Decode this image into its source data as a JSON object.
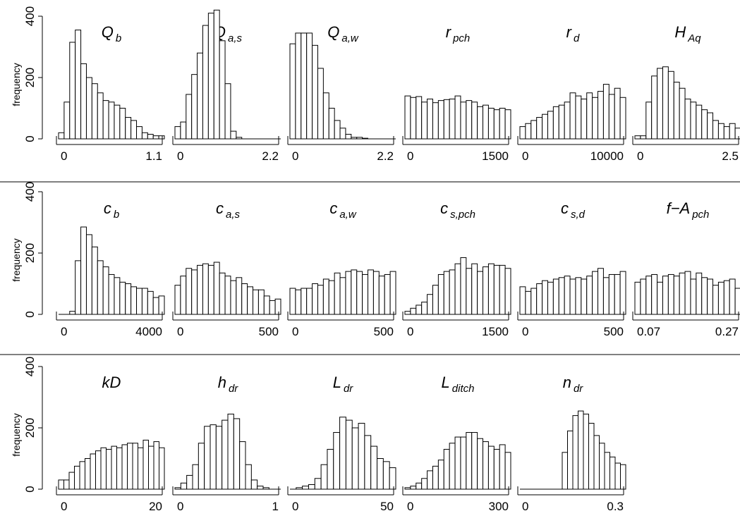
{
  "chart_data": {
    "type": "bar",
    "subtype": "histogram-grid",
    "y_label": "frequency",
    "y_ticks": [
      "0",
      "200",
      "400"
    ],
    "ylim": [
      0,
      400
    ],
    "rows": [
      {
        "panels": [
          {
            "name": "Qb",
            "title_main": "Q",
            "title_sub": "b",
            "x_ticks": [
              "0",
              "1.1"
            ],
            "values": [
              20,
              120,
              315,
              355,
              245,
              200,
              180,
              150,
              125,
              120,
              110,
              100,
              70,
              60,
              40,
              20,
              15,
              10,
              10
            ]
          },
          {
            "name": "Qa,s",
            "title_main": "Q",
            "title_sub": "a,s",
            "x_ticks": [
              "0",
              "2.2"
            ],
            "values": [
              40,
              55,
              145,
              210,
              280,
              370,
              410,
              420,
              320,
              180,
              25,
              5,
              0,
              0,
              0,
              0,
              0,
              0,
              0
            ]
          },
          {
            "name": "Qa,w",
            "title_main": "Q",
            "title_sub": "a,w",
            "x_ticks": [
              "0",
              "2.2"
            ],
            "values": [
              310,
              345,
              345,
              345,
              305,
              230,
              150,
              100,
              60,
              35,
              15,
              5,
              5,
              2,
              0,
              0,
              0,
              0,
              0
            ]
          },
          {
            "name": "rpch",
            "title_main": "r",
            "title_sub": "pch",
            "x_ticks": [
              "0",
              "1500"
            ],
            "values": [
              140,
              135,
              138,
              120,
              130,
              118,
              125,
              128,
              130,
              140,
              120,
              125,
              120,
              105,
              110,
              100,
              95,
              100,
              95
            ]
          },
          {
            "name": "rd",
            "title_main": "r",
            "title_sub": "d",
            "x_ticks": [
              "0",
              "10000"
            ],
            "values": [
              40,
              50,
              60,
              70,
              80,
              90,
              105,
              110,
              120,
              150,
              140,
              130,
              150,
              135,
              155,
              178,
              145,
              165,
              135
            ]
          },
          {
            "name": "HAq",
            "title_main": "H",
            "title_sub": "Aq",
            "x_ticks": [
              "0",
              "2.5"
            ],
            "values": [
              10,
              10,
              120,
              205,
              230,
              235,
              220,
              185,
              165,
              130,
              120,
              110,
              95,
              85,
              60,
              50,
              40,
              50,
              35
            ]
          }
        ]
      },
      {
        "panels": [
          {
            "name": "cb",
            "title_main": "c",
            "title_sub": "b",
            "x_ticks": [
              "0",
              "4000"
            ],
            "values": [
              0,
              0,
              10,
              175,
              285,
              260,
              220,
              175,
              155,
              130,
              120,
              105,
              100,
              90,
              85,
              85,
              75,
              55,
              60
            ]
          },
          {
            "name": "ca,s",
            "title_main": "c",
            "title_sub": "a,s",
            "x_ticks": [
              "0",
              "500"
            ],
            "values": [
              95,
              125,
              150,
              145,
              160,
              165,
              160,
              170,
              135,
              125,
              110,
              120,
              100,
              90,
              80,
              80,
              60,
              45,
              50
            ]
          },
          {
            "name": "ca,w",
            "title_main": "c",
            "title_sub": "a,w",
            "x_ticks": [
              "0",
              "500"
            ],
            "values": [
              85,
              80,
              85,
              85,
              100,
              95,
              115,
              110,
              135,
              120,
              140,
              145,
              140,
              130,
              145,
              140,
              125,
              130,
              140
            ]
          },
          {
            "name": "cs,pch",
            "title_main": "c",
            "title_sub": "s,pch",
            "x_ticks": [
              "0",
              "1500"
            ],
            "values": [
              10,
              20,
              30,
              40,
              65,
              95,
              130,
              140,
              145,
              165,
              185,
              150,
              165,
              140,
              155,
              165,
              160,
              160,
              150
            ]
          },
          {
            "name": "cs,d",
            "title_main": "c",
            "title_sub": "s,d",
            "x_ticks": [
              "0",
              "500"
            ],
            "values": [
              90,
              75,
              85,
              100,
              110,
              105,
              115,
              120,
              125,
              115,
              120,
              115,
              125,
              140,
              150,
              120,
              130,
              130,
              140
            ]
          },
          {
            "name": "f-Apch",
            "title_main": "f−A",
            "title_sub": "pch",
            "x_ticks": [
              "0.07",
              "0.27"
            ],
            "values": [
              105,
              115,
              125,
              130,
              105,
              125,
              130,
              125,
              135,
              140,
              115,
              135,
              120,
              115,
              95,
              105,
              110,
              115,
              85
            ]
          }
        ]
      },
      {
        "panels": [
          {
            "name": "kD",
            "title_main": "kD",
            "title_sub": "",
            "x_ticks": [
              "0",
              "20"
            ],
            "values": [
              30,
              30,
              55,
              75,
              90,
              100,
              115,
              125,
              135,
              130,
              140,
              135,
              145,
              150,
              150,
              135,
              160,
              140,
              155,
              135
            ]
          },
          {
            "name": "hdr",
            "title_main": "h",
            "title_sub": "dr",
            "x_ticks": [
              "0",
              "1"
            ],
            "values": [
              5,
              20,
              45,
              80,
              150,
              205,
              210,
              205,
              225,
              245,
              230,
              155,
              80,
              30,
              10,
              5,
              0,
              0
            ]
          },
          {
            "name": "Ldr",
            "title_main": "L",
            "title_sub": "dr",
            "x_ticks": [
              "0",
              "50"
            ],
            "values": [
              0,
              5,
              10,
              15,
              35,
              80,
              130,
              185,
              235,
              225,
              200,
              215,
              175,
              140,
              100,
              90,
              70
            ]
          },
          {
            "name": "Lditch",
            "title_main": "L",
            "title_sub": "ditch",
            "x_ticks": [
              "0",
              "300"
            ],
            "values": [
              5,
              10,
              20,
              35,
              60,
              75,
              95,
              130,
              150,
              170,
              170,
              185,
              185,
              165,
              155,
              140,
              130,
              145,
              120
            ]
          },
          {
            "name": "ndr",
            "title_main": "n",
            "title_sub": "dr",
            "x_ticks": [
              "0",
              "0.3"
            ],
            "values": [
              0,
              0,
              0,
              0,
              0,
              0,
              0,
              0,
              120,
              190,
              240,
              255,
              245,
              215,
              175,
              150,
              120,
              105,
              85,
              80
            ]
          }
        ]
      }
    ]
  }
}
